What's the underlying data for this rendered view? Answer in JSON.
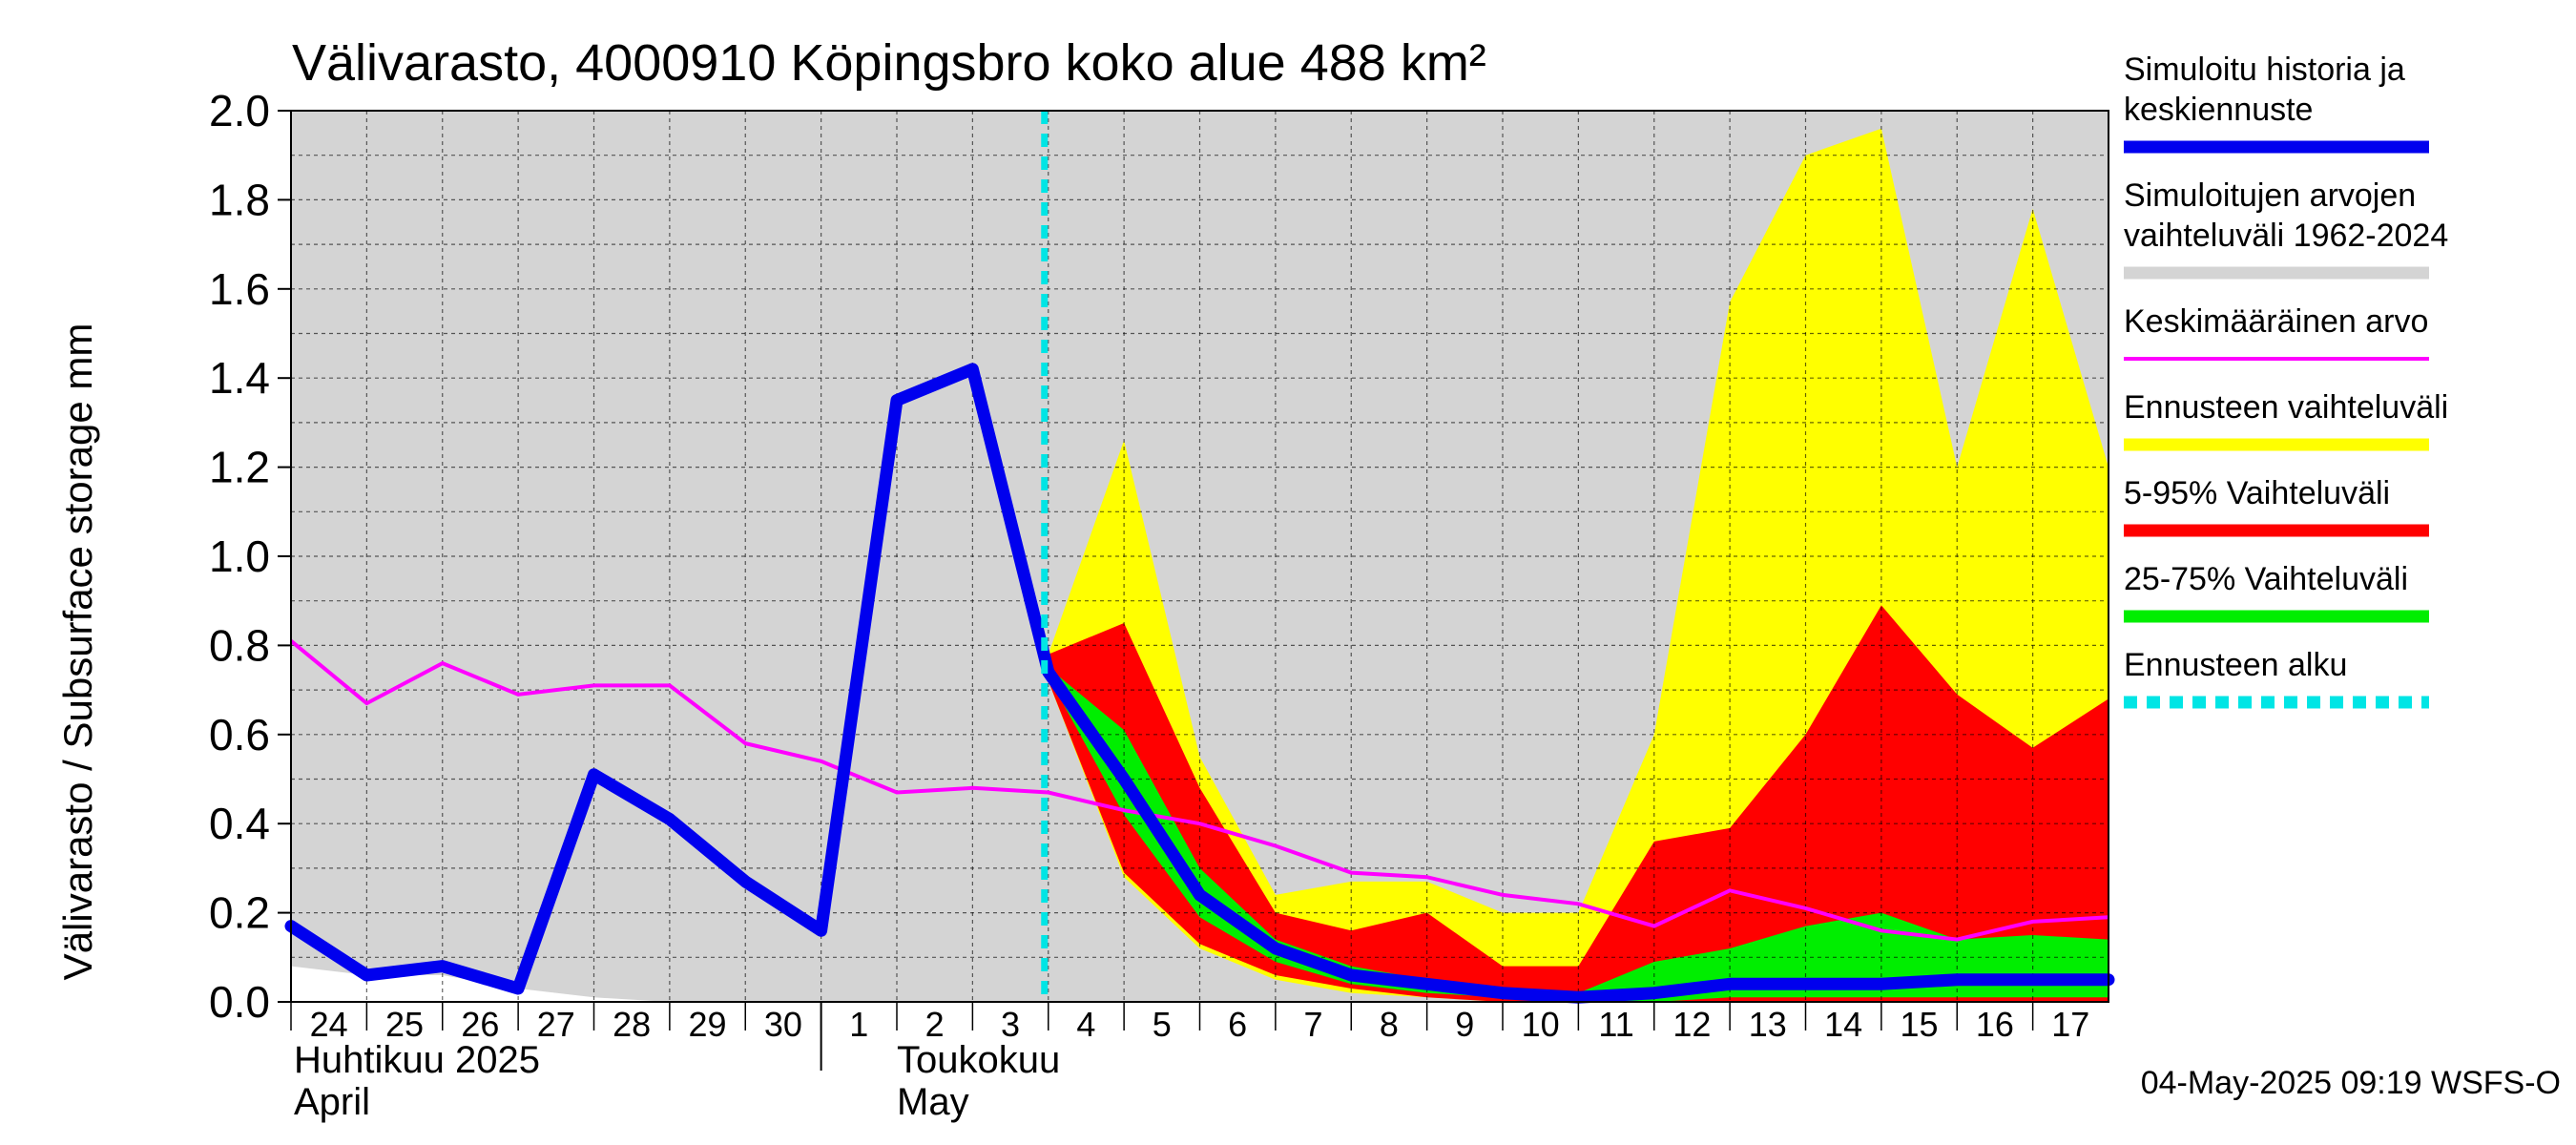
{
  "chart_data": {
    "type": "area",
    "title": "Välivarasto, 4000910 Köpingsbro koko alue 488 km²",
    "ylabel": "Välivarasto / Subsurface storage  mm",
    "ylim": [
      0,
      2.0
    ],
    "yticks": [
      "0.0",
      "0.2",
      "0.4",
      "0.6",
      "0.8",
      "1.0",
      "1.2",
      "1.4",
      "1.6",
      "1.8",
      "2.0"
    ],
    "day_labels": [
      "24",
      "25",
      "26",
      "27",
      "28",
      "29",
      "30",
      "1",
      "2",
      "3",
      "4",
      "5",
      "6",
      "7",
      "8",
      "9",
      "10",
      "11",
      "12",
      "13",
      "14",
      "15",
      "16",
      "17"
    ],
    "month_labels": {
      "april_fi": "Huhtikuu  2025",
      "april_en": "April",
      "may_fi": "Toukokuu",
      "may_en": "May"
    },
    "x": [
      "2025-04-24",
      "2025-04-25",
      "2025-04-26",
      "2025-04-27",
      "2025-04-28",
      "2025-04-29",
      "2025-04-30",
      "2025-05-01",
      "2025-05-02",
      "2025-05-03",
      "2025-05-04",
      "2025-05-05",
      "2025-05-06",
      "2025-05-07",
      "2025-05-08",
      "2025-05-09",
      "2025-05-10",
      "2025-05-11",
      "2025-05-12",
      "2025-05-13",
      "2025-05-14",
      "2025-05-15",
      "2025-05-16",
      "2025-05-17",
      "2025-05-18"
    ],
    "forecast_start": "2025-05-04",
    "series": [
      {
        "name": "Simuloitujen arvojen vaihteluväli 1962-2024",
        "color": "#d4d4d4",
        "upper": [
          2.0,
          2.0,
          2.0,
          2.0,
          2.0,
          2.0,
          2.0,
          2.0,
          2.0,
          2.0,
          2.0,
          2.0,
          2.0,
          2.0,
          2.0,
          2.0,
          2.0,
          2.0,
          2.0,
          2.0,
          2.0,
          2.0,
          2.0,
          2.0,
          2.0
        ],
        "lower": [
          0.08,
          0.06,
          0.06,
          0.03,
          0.01,
          0.0,
          0.0,
          0.0,
          0.0,
          0.0,
          0.0,
          0.0,
          0.0,
          0.0,
          0.0,
          0.0,
          0.0,
          0.0,
          0.0,
          0.0,
          0.0,
          0.0,
          0.0,
          0.0,
          0.0
        ]
      },
      {
        "name": "Ennusteen vaihteluväli",
        "color": "#ffff00",
        "x": [
          "2025-05-04",
          "2025-05-05",
          "2025-05-06",
          "2025-05-07",
          "2025-05-08",
          "2025-05-09",
          "2025-05-10",
          "2025-05-11",
          "2025-05-12",
          "2025-05-13",
          "2025-05-14",
          "2025-05-15",
          "2025-05-16",
          "2025-05-17",
          "2025-05-18"
        ],
        "upper": [
          0.78,
          1.26,
          0.55,
          0.24,
          0.27,
          0.27,
          0.2,
          0.2,
          0.6,
          1.57,
          1.9,
          1.96,
          1.2,
          1.78,
          1.2
        ],
        "lower": [
          0.72,
          0.28,
          0.12,
          0.05,
          0.02,
          0.01,
          0.0,
          0.0,
          0.0,
          0.0,
          0.0,
          0.0,
          0.0,
          0.0,
          0.0
        ]
      },
      {
        "name": "5-95% Vaihteluväli",
        "color": "#ff0000",
        "x": [
          "2025-05-04",
          "2025-05-05",
          "2025-05-06",
          "2025-05-07",
          "2025-05-08",
          "2025-05-09",
          "2025-05-10",
          "2025-05-11",
          "2025-05-12",
          "2025-05-13",
          "2025-05-14",
          "2025-05-15",
          "2025-05-16",
          "2025-05-17",
          "2025-05-18"
        ],
        "upper": [
          0.78,
          0.85,
          0.48,
          0.2,
          0.16,
          0.2,
          0.08,
          0.08,
          0.36,
          0.39,
          0.6,
          0.89,
          0.69,
          0.57,
          0.68
        ],
        "lower": [
          0.72,
          0.29,
          0.13,
          0.06,
          0.03,
          0.01,
          0.0,
          0.0,
          0.0,
          0.0,
          0.0,
          0.0,
          0.0,
          0.0,
          0.0
        ]
      },
      {
        "name": "25-75% Vaihteluväli",
        "color": "#00ee00",
        "x": [
          "2025-05-04",
          "2025-05-05",
          "2025-05-06",
          "2025-05-07",
          "2025-05-08",
          "2025-05-09",
          "2025-05-10",
          "2025-05-11",
          "2025-05-12",
          "2025-05-13",
          "2025-05-14",
          "2025-05-15",
          "2025-05-16",
          "2025-05-17",
          "2025-05-18"
        ],
        "upper": [
          0.75,
          0.61,
          0.3,
          0.14,
          0.08,
          0.05,
          0.02,
          0.02,
          0.09,
          0.12,
          0.17,
          0.2,
          0.14,
          0.15,
          0.14
        ],
        "lower": [
          0.73,
          0.42,
          0.19,
          0.09,
          0.04,
          0.02,
          0.01,
          0.0,
          0.0,
          0.01,
          0.01,
          0.01,
          0.01,
          0.01,
          0.01
        ]
      },
      {
        "name": "Keskimääräinen arvo",
        "color": "#ff00ff",
        "values": [
          0.81,
          0.67,
          0.76,
          0.69,
          0.71,
          0.71,
          0.58,
          0.54,
          0.47,
          0.48,
          0.47,
          0.43,
          0.4,
          0.35,
          0.29,
          0.28,
          0.24,
          0.22,
          0.17,
          0.25,
          0.21,
          0.16,
          0.14,
          0.18,
          0.19
        ]
      },
      {
        "name": "Simuloitu historia ja keskiennuste",
        "color": "#0000ee",
        "values": [
          0.17,
          0.06,
          0.08,
          0.03,
          0.51,
          0.41,
          0.27,
          0.16,
          1.35,
          1.42,
          0.74,
          0.5,
          0.24,
          0.12,
          0.06,
          0.04,
          0.02,
          0.01,
          0.02,
          0.04,
          0.04,
          0.04,
          0.05,
          0.05,
          0.05
        ]
      }
    ],
    "legend": [
      {
        "label": "Simuloitu historia ja keskiennuste",
        "color": "#0000ee",
        "style": "thick"
      },
      {
        "label": "Simuloitujen arvojen vaihteluväli 1962-2024",
        "color": "#d4d4d4",
        "style": "thick"
      },
      {
        "label": "Keskimääräinen arvo",
        "color": "#ff00ff",
        "style": "thin"
      },
      {
        "label": "Ennusteen vaihteluväli",
        "color": "#ffff00",
        "style": "thick"
      },
      {
        "label": "5-95% Vaihteluväli",
        "color": "#ff0000",
        "style": "thick"
      },
      {
        "label": "25-75% Vaihteluväli",
        "color": "#00ee00",
        "style": "thick"
      },
      {
        "label": "Ennusteen alku",
        "color": "#00e5e5",
        "style": "dashed"
      }
    ],
    "legend_position": "right",
    "grid": true,
    "footer": "04-May-2025 09:19 WSFS-O"
  }
}
